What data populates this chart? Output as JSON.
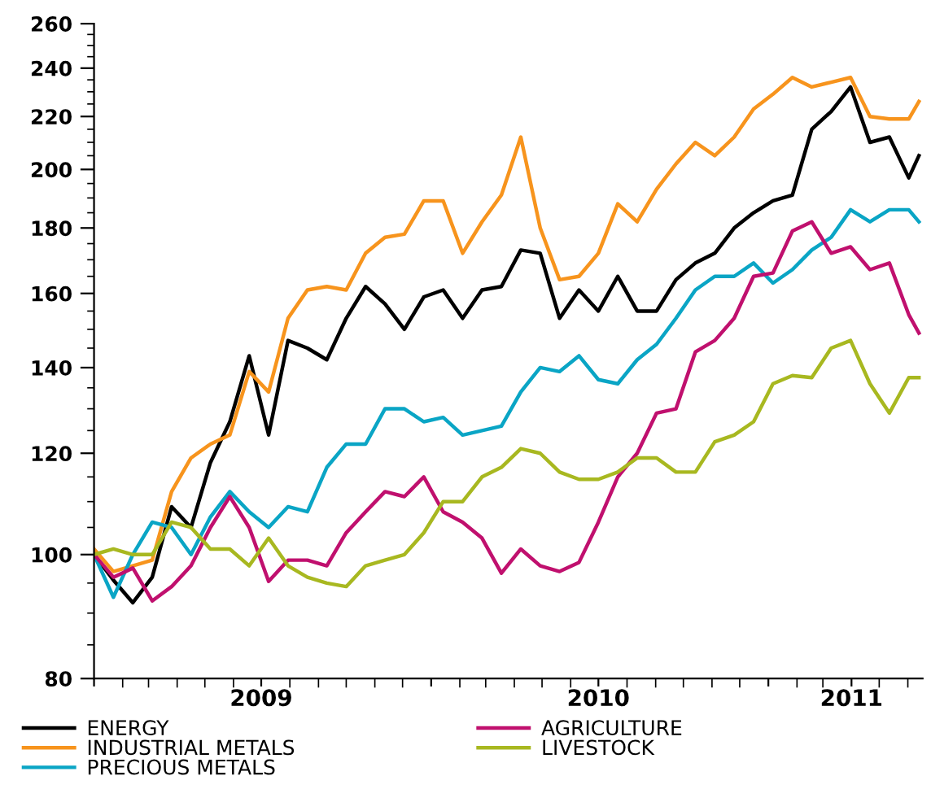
{
  "chart_data": {
    "type": "line",
    "x": [
      "2009-01-01",
      "2009-01-22",
      "2009-02-12",
      "2009-03-05",
      "2009-03-26",
      "2009-04-16",
      "2009-05-07",
      "2009-05-28",
      "2009-06-18",
      "2009-07-09",
      "2009-07-30",
      "2009-08-20",
      "2009-09-10",
      "2009-10-01",
      "2009-10-22",
      "2009-11-12",
      "2009-12-03",
      "2009-12-24",
      "2010-01-14",
      "2010-02-04",
      "2010-02-25",
      "2010-03-18",
      "2010-04-08",
      "2010-04-29",
      "2010-05-20",
      "2010-06-10",
      "2010-07-01",
      "2010-07-22",
      "2010-08-12",
      "2010-09-02",
      "2010-09-23",
      "2010-10-14",
      "2010-11-04",
      "2010-11-25",
      "2010-12-16",
      "2011-01-06",
      "2011-01-27",
      "2011-02-17",
      "2011-03-10",
      "2011-03-31",
      "2011-04-21",
      "2011-05-12",
      "2011-06-02",
      "2011-06-13"
    ],
    "series": [
      {
        "name": "ENERGY",
        "color": "#000000",
        "values": [
          100,
          95.5,
          91.7,
          96,
          109,
          105,
          118,
          127,
          143,
          124,
          147,
          145,
          142,
          153,
          162,
          157,
          150,
          159,
          161,
          153,
          161,
          162,
          173,
          172,
          153,
          161,
          155,
          165,
          155,
          155,
          164,
          169,
          172,
          180,
          185,
          189,
          191,
          215,
          222,
          232,
          210,
          212,
          197,
          205
        ]
      },
      {
        "name": "INDUSTRIAL METALS",
        "color": "#f7941d",
        "values": [
          101,
          97,
          98,
          99,
          112,
          119,
          122,
          124,
          139,
          134,
          153,
          161,
          162,
          161,
          172,
          177,
          178,
          189,
          189,
          172,
          182,
          191,
          212,
          180,
          164,
          165,
          172,
          188,
          182,
          193,
          202,
          210,
          205,
          212,
          223,
          229,
          236,
          232,
          234,
          236,
          220,
          219,
          219,
          226
        ]
      },
      {
        "name": "PRECIOUS METALS",
        "color": "#0aa5c5",
        "values": [
          100,
          92.6,
          100,
          106,
          105,
          100,
          107,
          112,
          108,
          105,
          109,
          108,
          117,
          122,
          122,
          130,
          130,
          127,
          128,
          124,
          125,
          126,
          134,
          140,
          139,
          143,
          137,
          136,
          142,
          146,
          153,
          161,
          165,
          165,
          169,
          163,
          167,
          173,
          177,
          186,
          182,
          186,
          186,
          182
        ]
      },
      {
        "name": "AGRICULTURE",
        "color": "#c0106e",
        "values": [
          100,
          96,
          97.6,
          92,
          94.4,
          98,
          105,
          111,
          105,
          95.3,
          99,
          99,
          98,
          104,
          108,
          112,
          111,
          115,
          108,
          106,
          103,
          96.7,
          101,
          98,
          97,
          98.6,
          106,
          115,
          120,
          129,
          130,
          144,
          147,
          153,
          165,
          166,
          179,
          182,
          172,
          174,
          167,
          169,
          154,
          149
        ]
      },
      {
        "name": "LIVESTOCK",
        "color": "#a8b820",
        "values": [
          100,
          101,
          100,
          100,
          106,
          105,
          101,
          101,
          98,
          103,
          98,
          96,
          95,
          94.4,
          98,
          99,
          100,
          104,
          110,
          110,
          115,
          117,
          121,
          120,
          116,
          114.5,
          114.5,
          116,
          119,
          119,
          116,
          116,
          122.5,
          124,
          127,
          136,
          138,
          137.5,
          145,
          147,
          136,
          129,
          137.5,
          137.5
        ]
      }
    ],
    "xlim": [
      "2009-01-01",
      "2011-06-17"
    ],
    "xticks": [
      {
        "value": "2009-01-01",
        "label": null
      },
      {
        "value": "2009-07-01",
        "label": "2009"
      },
      {
        "value": "2010-01-01",
        "label": null
      },
      {
        "value": "2010-07-01",
        "label": "2010"
      },
      {
        "value": "2011-01-01",
        "label": null
      },
      {
        "value": "2011-04-01",
        "label": "2011"
      }
    ],
    "ylim": [
      80,
      260
    ],
    "yticks": [
      80,
      100,
      120,
      140,
      160,
      180,
      200,
      220,
      240,
      260
    ],
    "log": true,
    "grid": false,
    "legend": "bottom",
    "marker": "none",
    "line_style": "solid"
  }
}
